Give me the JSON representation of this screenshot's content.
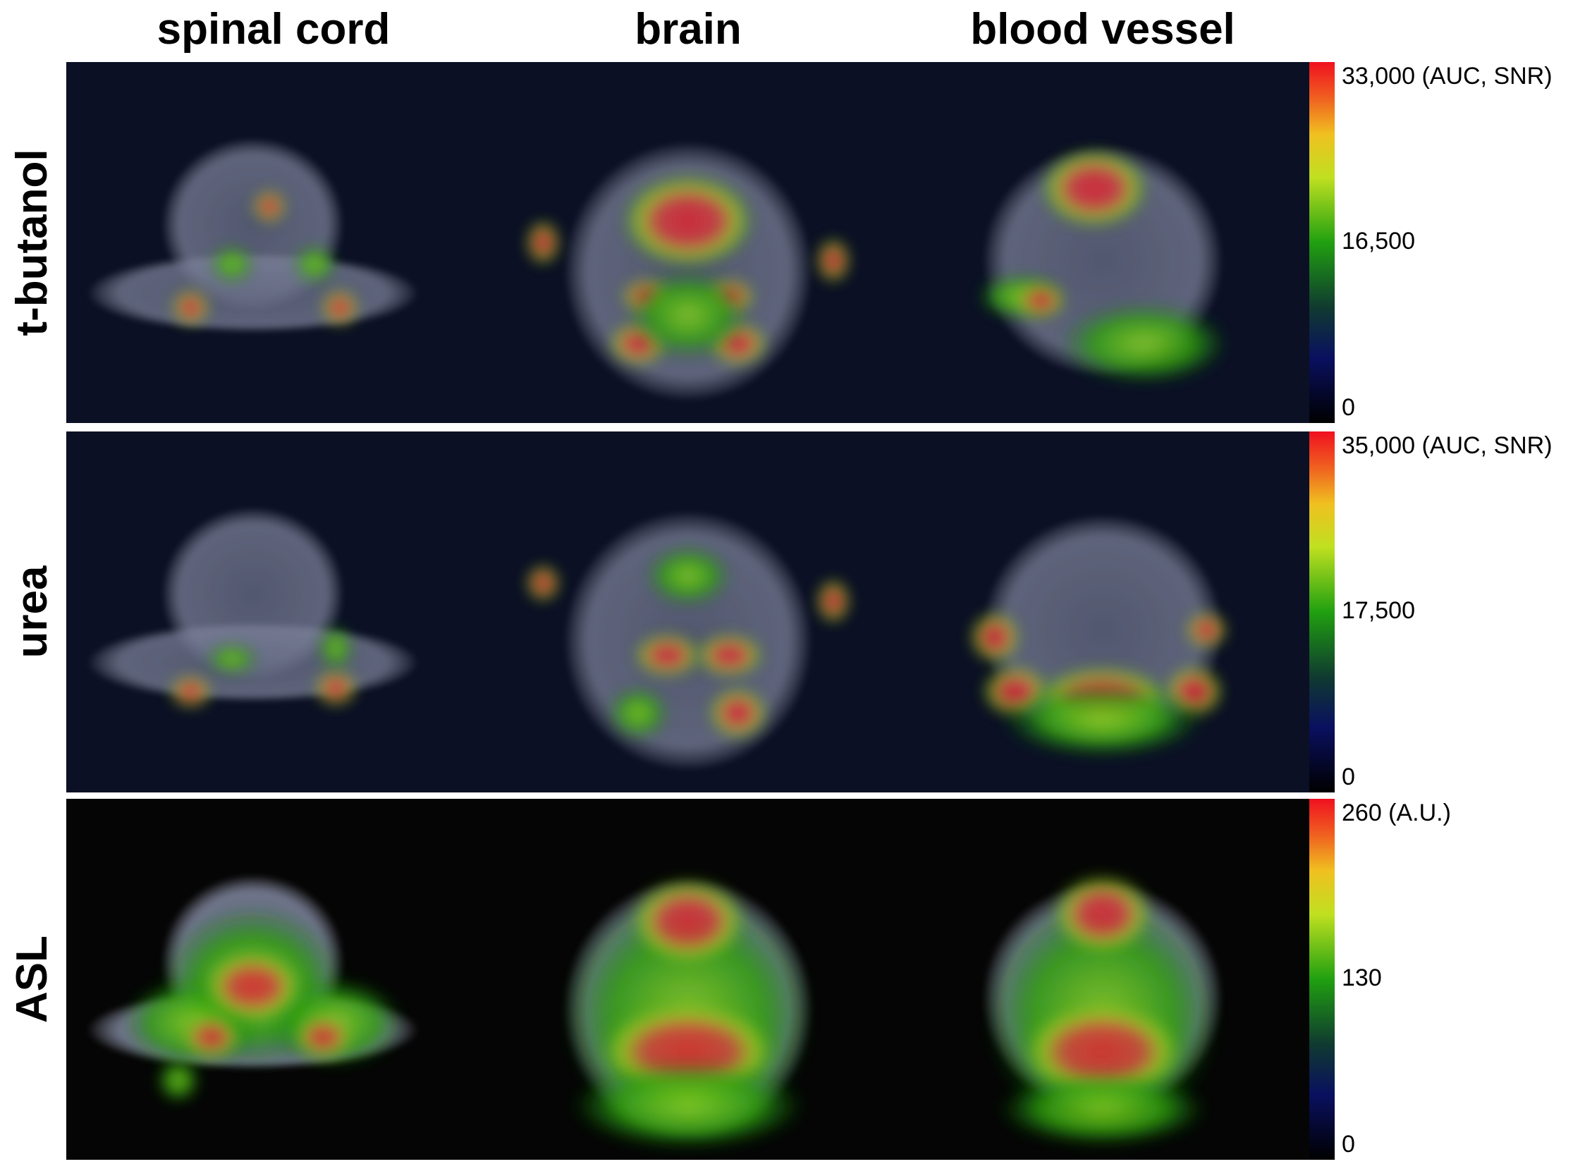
{
  "columns": [
    "spinal cord",
    "brain",
    "blood vessel"
  ],
  "rows": [
    {
      "label": "t-butanol",
      "scale": [
        "33,000 (AUC, SNR)",
        "16,500",
        "0"
      ]
    },
    {
      "label": "urea",
      "scale": [
        "35,000 (AUC, SNR)",
        "17,500",
        "0"
      ]
    },
    {
      "label": "ASL",
      "scale": [
        "260 (A.U.)",
        "130",
        "0"
      ]
    }
  ]
}
